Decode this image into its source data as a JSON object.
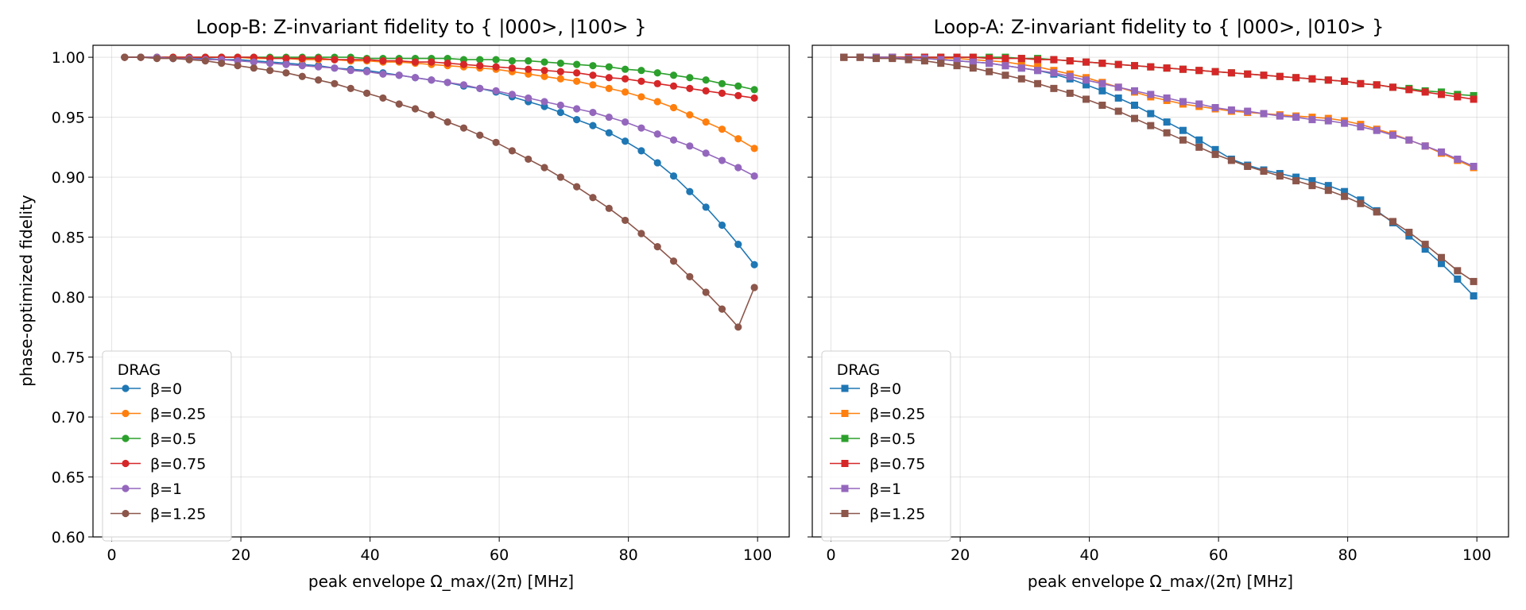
{
  "chart_data": [
    {
      "type": "line",
      "title": "Loop-B: Z-invariant fidelity to { |000>, |100> }",
      "xlabel": "peak envelope Ω_max/(2π) [MHz]",
      "ylabel": "phase-optimized fidelity",
      "xlim": [
        -2.9,
        104.9
      ],
      "ylim": [
        0.6,
        1.01
      ],
      "xticks": [
        "0",
        "20",
        "40",
        "60",
        "80",
        "100"
      ],
      "yticks": [
        "0.60",
        "0.65",
        "0.70",
        "0.75",
        "0.80",
        "0.85",
        "0.90",
        "0.95",
        "1.00"
      ],
      "grid": true,
      "marker": "circle",
      "legend": {
        "title": "DRAG",
        "location": "lower-left"
      },
      "x": [
        2,
        4.5,
        7,
        9.5,
        12,
        14.5,
        17,
        19.5,
        22,
        24.5,
        27,
        29.5,
        32,
        34.5,
        37,
        39.5,
        42,
        44.5,
        47,
        49.5,
        52,
        54.5,
        57,
        59.5,
        62,
        64.5,
        67,
        69.5,
        72,
        74.5,
        77,
        79.5,
        82,
        84.5,
        87,
        89.5,
        92,
        94.5,
        97,
        99.5
      ],
      "series": [
        {
          "name": "β=0",
          "color": "#1f77b4",
          "values": [
            1.0,
            1.0,
            1.0,
            0.999,
            0.999,
            0.999,
            0.998,
            0.998,
            0.997,
            0.996,
            0.995,
            0.994,
            0.993,
            0.991,
            0.99,
            0.989,
            0.987,
            0.985,
            0.983,
            0.981,
            0.979,
            0.976,
            0.974,
            0.971,
            0.967,
            0.963,
            0.959,
            0.954,
            0.948,
            0.943,
            0.937,
            0.93,
            0.922,
            0.912,
            0.901,
            0.888,
            0.875,
            0.86,
            0.844,
            0.827
          ]
        },
        {
          "name": "β=0.25",
          "color": "#ff7f0e",
          "values": [
            1.0,
            1.0,
            1.0,
            1.0,
            1.0,
            1.0,
            1.0,
            1.0,
            0.999,
            0.999,
            0.999,
            0.998,
            0.998,
            0.998,
            0.997,
            0.997,
            0.996,
            0.996,
            0.995,
            0.994,
            0.993,
            0.992,
            0.991,
            0.99,
            0.988,
            0.986,
            0.984,
            0.982,
            0.98,
            0.977,
            0.974,
            0.971,
            0.967,
            0.963,
            0.958,
            0.952,
            0.946,
            0.94,
            0.932,
            0.924
          ]
        },
        {
          "name": "β=0.5",
          "color": "#2ca02c",
          "values": [
            1.0,
            1.0,
            1.0,
            1.0,
            1.0,
            1.0,
            1.0,
            1.0,
            1.0,
            1.0,
            1.0,
            1.0,
            1.0,
            1.0,
            1.0,
            0.999,
            0.999,
            0.999,
            0.999,
            0.999,
            0.999,
            0.998,
            0.998,
            0.998,
            0.997,
            0.997,
            0.996,
            0.995,
            0.994,
            0.993,
            0.992,
            0.99,
            0.989,
            0.987,
            0.985,
            0.983,
            0.981,
            0.978,
            0.976,
            0.973
          ]
        },
        {
          "name": "β=0.75",
          "color": "#d62728",
          "values": [
            1.0,
            1.0,
            1.0,
            1.0,
            1.0,
            1.0,
            1.0,
            1.0,
            1.0,
            0.999,
            0.999,
            0.999,
            0.999,
            0.998,
            0.998,
            0.998,
            0.997,
            0.997,
            0.996,
            0.996,
            0.995,
            0.994,
            0.993,
            0.992,
            0.991,
            0.99,
            0.989,
            0.988,
            0.987,
            0.985,
            0.983,
            0.982,
            0.98,
            0.978,
            0.976,
            0.974,
            0.972,
            0.97,
            0.968,
            0.966
          ]
        },
        {
          "name": "β=1",
          "color": "#9467bd",
          "values": [
            1.0,
            1.0,
            1.0,
            0.999,
            0.999,
            0.998,
            0.998,
            0.997,
            0.996,
            0.995,
            0.994,
            0.993,
            0.992,
            0.991,
            0.989,
            0.988,
            0.986,
            0.985,
            0.983,
            0.981,
            0.979,
            0.977,
            0.974,
            0.972,
            0.969,
            0.966,
            0.963,
            0.96,
            0.957,
            0.954,
            0.95,
            0.946,
            0.941,
            0.936,
            0.931,
            0.926,
            0.92,
            0.914,
            0.908,
            0.901
          ]
        },
        {
          "name": "β=1.25",
          "color": "#8c564b",
          "values": [
            1.0,
            1.0,
            0.999,
            0.999,
            0.998,
            0.997,
            0.995,
            0.993,
            0.991,
            0.989,
            0.987,
            0.984,
            0.981,
            0.978,
            0.974,
            0.97,
            0.966,
            0.961,
            0.957,
            0.952,
            0.946,
            0.941,
            0.935,
            0.929,
            0.922,
            0.915,
            0.908,
            0.9,
            0.892,
            0.883,
            0.874,
            0.864,
            0.853,
            0.842,
            0.83,
            0.817,
            0.804,
            0.79,
            0.775,
            0.808
          ]
        }
      ]
    },
    {
      "type": "line",
      "title": "Loop-A: Z-invariant fidelity to { |000>, |010> }",
      "xlabel": "peak envelope Ω_max/(2π) [MHz]",
      "ylabel": "",
      "xlim": [
        -2.9,
        104.9
      ],
      "ylim": [
        0.6,
        1.01
      ],
      "xticks": [
        "0",
        "20",
        "40",
        "60",
        "80",
        "100"
      ],
      "yticks": [],
      "grid": true,
      "marker": "square",
      "legend": {
        "title": "DRAG",
        "location": "lower-left"
      },
      "x": [
        2,
        4.5,
        7,
        9.5,
        12,
        14.5,
        17,
        19.5,
        22,
        24.5,
        27,
        29.5,
        32,
        34.5,
        37,
        39.5,
        42,
        44.5,
        47,
        49.5,
        52,
        54.5,
        57,
        59.5,
        62,
        64.5,
        67,
        69.5,
        72,
        74.5,
        77,
        79.5,
        82,
        84.5,
        87,
        89.5,
        92,
        94.5,
        97,
        99.5
      ],
      "series": [
        {
          "name": "β=0",
          "color": "#1f77b4",
          "values": [
            1.0,
            1.0,
            1.0,
            1.0,
            0.999,
            0.999,
            0.998,
            0.997,
            0.996,
            0.995,
            0.993,
            0.991,
            0.989,
            0.986,
            0.982,
            0.977,
            0.972,
            0.966,
            0.96,
            0.953,
            0.946,
            0.939,
            0.931,
            0.923,
            0.915,
            0.91,
            0.906,
            0.903,
            0.9,
            0.897,
            0.893,
            0.888,
            0.881,
            0.872,
            0.862,
            0.851,
            0.84,
            0.828,
            0.815,
            0.801
          ]
        },
        {
          "name": "β=0.25",
          "color": "#ff7f0e",
          "values": [
            1.0,
            1.0,
            1.0,
            1.0,
            1.0,
            1.0,
            0.999,
            0.999,
            0.998,
            0.997,
            0.996,
            0.994,
            0.992,
            0.989,
            0.986,
            0.983,
            0.979,
            0.975,
            0.971,
            0.967,
            0.964,
            0.961,
            0.959,
            0.957,
            0.955,
            0.954,
            0.953,
            0.952,
            0.951,
            0.95,
            0.949,
            0.947,
            0.944,
            0.94,
            0.936,
            0.931,
            0.926,
            0.92,
            0.914,
            0.908
          ]
        },
        {
          "name": "β=0.5",
          "color": "#2ca02c",
          "values": [
            1.0,
            1.0,
            1.0,
            1.0,
            1.0,
            1.0,
            1.0,
            1.0,
            1.0,
            1.0,
            1.0,
            0.999,
            0.999,
            0.998,
            0.997,
            0.996,
            0.995,
            0.994,
            0.993,
            0.992,
            0.991,
            0.99,
            0.989,
            0.988,
            0.987,
            0.986,
            0.985,
            0.984,
            0.983,
            0.982,
            0.981,
            0.98,
            0.978,
            0.977,
            0.975,
            0.974,
            0.972,
            0.971,
            0.969,
            0.968
          ]
        },
        {
          "name": "β=0.75",
          "color": "#d62728",
          "values": [
            1.0,
            1.0,
            1.0,
            1.0,
            1.0,
            1.0,
            1.0,
            1.0,
            1.0,
            0.999,
            0.999,
            0.999,
            0.998,
            0.998,
            0.997,
            0.996,
            0.995,
            0.994,
            0.993,
            0.992,
            0.991,
            0.99,
            0.989,
            0.988,
            0.987,
            0.986,
            0.985,
            0.984,
            0.983,
            0.982,
            0.981,
            0.98,
            0.978,
            0.977,
            0.975,
            0.973,
            0.971,
            0.969,
            0.967,
            0.965
          ]
        },
        {
          "name": "β=1",
          "color": "#9467bd",
          "values": [
            1.0,
            1.0,
            1.0,
            1.0,
            0.999,
            0.999,
            0.998,
            0.997,
            0.996,
            0.995,
            0.993,
            0.991,
            0.989,
            0.987,
            0.984,
            0.981,
            0.978,
            0.975,
            0.972,
            0.969,
            0.966,
            0.963,
            0.961,
            0.958,
            0.956,
            0.955,
            0.953,
            0.951,
            0.95,
            0.948,
            0.947,
            0.945,
            0.942,
            0.939,
            0.935,
            0.931,
            0.926,
            0.921,
            0.915,
            0.909
          ]
        },
        {
          "name": "β=1.25",
          "color": "#8c564b",
          "values": [
            1.0,
            1.0,
            0.999,
            0.999,
            0.998,
            0.997,
            0.995,
            0.993,
            0.991,
            0.988,
            0.985,
            0.982,
            0.978,
            0.974,
            0.97,
            0.965,
            0.96,
            0.955,
            0.949,
            0.943,
            0.937,
            0.931,
            0.925,
            0.919,
            0.914,
            0.909,
            0.905,
            0.901,
            0.897,
            0.893,
            0.889,
            0.884,
            0.878,
            0.871,
            0.863,
            0.854,
            0.844,
            0.833,
            0.822,
            0.813
          ]
        }
      ]
    }
  ]
}
